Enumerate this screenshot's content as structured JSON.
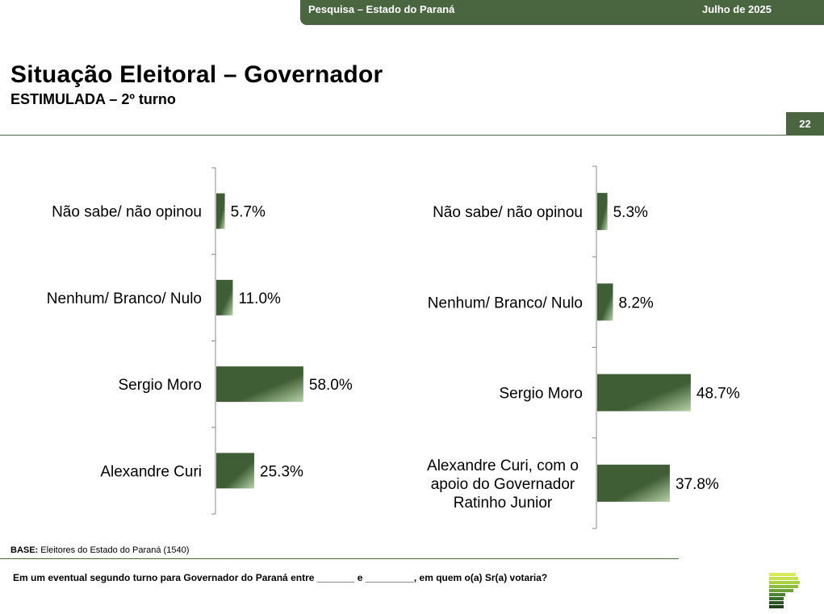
{
  "header": {
    "survey_label": "Pesquisa – Estado do Paraná",
    "date_label": "Julho de 2025"
  },
  "page": {
    "title": "Situação Eleitoral – Governador",
    "subtitle": "ESTIMULADA – 2º turno",
    "page_number": "22"
  },
  "footer": {
    "base_label": "BASE:",
    "base_text": "Eleitores do Estado do Paraná (1540)",
    "question": "Em um eventual segundo turno para Governador do Paraná entre _______ e _________, em quem o(a) Sr(a) votaria?"
  },
  "colors": {
    "accent": "#4a6640",
    "bar_dark": "#3f5e35",
    "bar_light": "#b7d2a8"
  },
  "chart_data": [
    {
      "type": "bar",
      "orientation": "horizontal",
      "categories": [
        "Não sabe/ não opinou",
        "Nenhum/ Branco/ Nulo",
        "Sergio Moro",
        "Alexandre Curi"
      ],
      "values": [
        5.7,
        11.0,
        58.0,
        25.3
      ],
      "value_labels": [
        "5.7%",
        "11.0%",
        "58.0%",
        "25.3%"
      ],
      "unit": "%",
      "grid": false,
      "legend": "none"
    },
    {
      "type": "bar",
      "orientation": "horizontal",
      "categories": [
        "Não sabe/ não opinou",
        "Nenhum/ Branco/ Nulo",
        "Sergio Moro",
        "Alexandre Curi, com o apoio do Governador Ratinho Junior"
      ],
      "category_lines": [
        [
          "Não sabe/ não opinou"
        ],
        [
          "Nenhum/ Branco/ Nulo"
        ],
        [
          "Sergio Moro"
        ],
        [
          "Alexandre Curi, com o",
          "apoio do Governador",
          "Ratinho Junior"
        ]
      ],
      "values": [
        5.3,
        8.2,
        48.7,
        37.8
      ],
      "value_labels": [
        "5.3%",
        "8.2%",
        "48.7%",
        "37.8%"
      ],
      "unit": "%",
      "grid": false,
      "legend": "none"
    }
  ]
}
